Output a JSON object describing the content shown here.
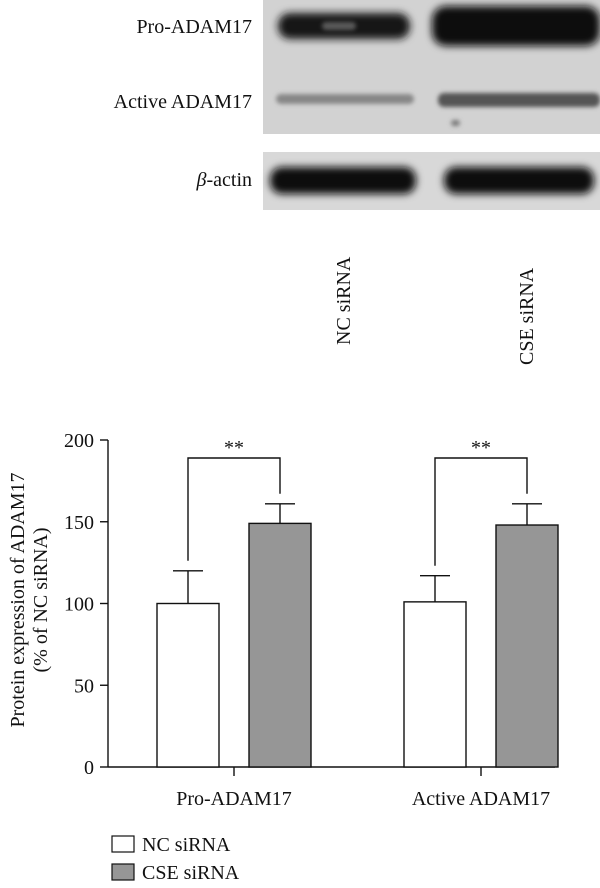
{
  "blot": {
    "labels": [
      "Pro-ADAM17",
      "Active ADAM17"
    ],
    "actin_label_greek": "β",
    "actin_label_rest": "-actin",
    "lanes": [
      "NC siRNA",
      "CSE siRNA"
    ]
  },
  "chart_data": {
    "type": "bar",
    "categories": [
      "Pro-ADAM17",
      "Active ADAM17"
    ],
    "series": [
      {
        "name": "NC siRNA",
        "values": [
          100,
          101
        ],
        "errors": [
          20,
          16
        ],
        "color": "#ffffff"
      },
      {
        "name": "CSE siRNA",
        "values": [
          149,
          148
        ],
        "errors": [
          12,
          13
        ],
        "color": "#969696"
      }
    ],
    "ylabel_line1": "Protein expression of ADAM17",
    "ylabel_line2": "(% of NC siRNA)",
    "xlabel": "",
    "ylim": [
      0,
      200
    ],
    "yticks": [
      "0",
      "50",
      "100",
      "150",
      "200"
    ],
    "significance": [
      "**",
      "**"
    ],
    "grid": false,
    "legend_position": "bottom-left"
  }
}
